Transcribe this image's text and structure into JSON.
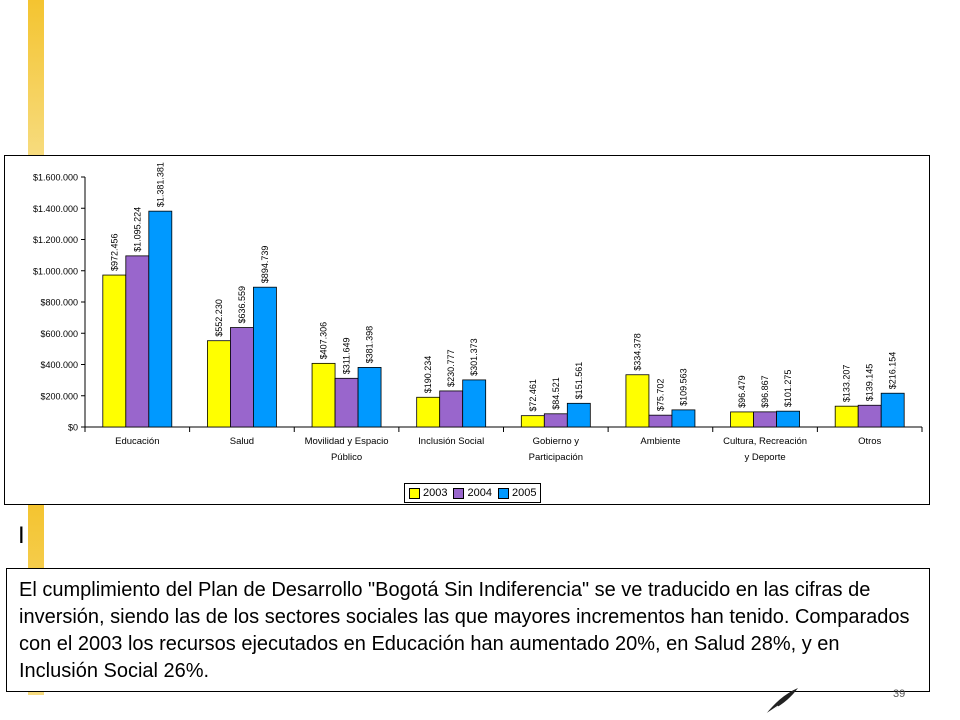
{
  "chart_data": {
    "type": "bar",
    "categories": [
      [
        "Educación"
      ],
      [
        "Salud"
      ],
      [
        "Movilidad y Espacio",
        "Público"
      ],
      [
        "Inclusión Social"
      ],
      [
        "Gobierno y",
        "Participación"
      ],
      [
        "Ambiente"
      ],
      [
        "Cultura, Recreación",
        "y Deporte"
      ],
      [
        "Otros"
      ]
    ],
    "series": [
      {
        "name": "2003",
        "color": "#ffff00",
        "values": [
          972456,
          552230,
          407306,
          190234,
          72461,
          334378,
          96479,
          133207
        ],
        "labels": [
          "$972.456",
          "$552.230",
          "$407.306",
          "$190.234",
          "$72.461",
          "$334.378",
          "$96.479",
          "$133.207"
        ]
      },
      {
        "name": "2004",
        "color": "#9966cc",
        "values": [
          1095224,
          636559,
          311649,
          230777,
          84521,
          75702,
          96867,
          139145
        ],
        "labels": [
          "$1.095.224",
          "$636.559",
          "$311.649",
          "$230.777",
          "$84.521",
          "$75.702",
          "$96.867",
          "$139.145"
        ]
      },
      {
        "name": "2005",
        "color": "#0099ff",
        "values": [
          1381381,
          894739,
          381398,
          301373,
          151561,
          109563,
          101275,
          216154
        ],
        "labels": [
          "$1.381.381",
          "$894.739",
          "$381.398",
          "$301.373",
          "$151.561",
          "$109.563",
          "$101.275",
          "$216.154"
        ]
      }
    ],
    "ylim": [
      0,
      1600000
    ],
    "yticks": [
      {
        "value": 0,
        "label": "$0"
      },
      {
        "value": 200000,
        "label": "$200.000"
      },
      {
        "value": 400000,
        "label": "$400.000"
      },
      {
        "value": 600000,
        "label": "$600.000"
      },
      {
        "value": 800000,
        "label": "$800.000"
      },
      {
        "value": 1000000,
        "label": "$1.000.000"
      },
      {
        "value": 1200000,
        "label": "$1.200.000"
      },
      {
        "value": 1400000,
        "label": "$1.400.000"
      },
      {
        "value": 1600000,
        "label": "$1.600.000"
      }
    ],
    "grid": false,
    "legend_position": "bottom"
  },
  "slide": {
    "cursor_mark": "I",
    "body_text": "El cumplimiento del Plan de Desarrollo \"Bogotá Sin Indiferencia\" se ve traducido en las cifras de inversión, siendo las de los sectores sociales las que mayores incrementos han tenido. Comparados con el 2003 los recursos ejecutados en Educación han aumentado 20%, en Salud 28%, y en Inclusión Social 26%.",
    "page_number": "39",
    "accent_color": "#f4c430",
    "logo_icon": "feather-icon"
  }
}
